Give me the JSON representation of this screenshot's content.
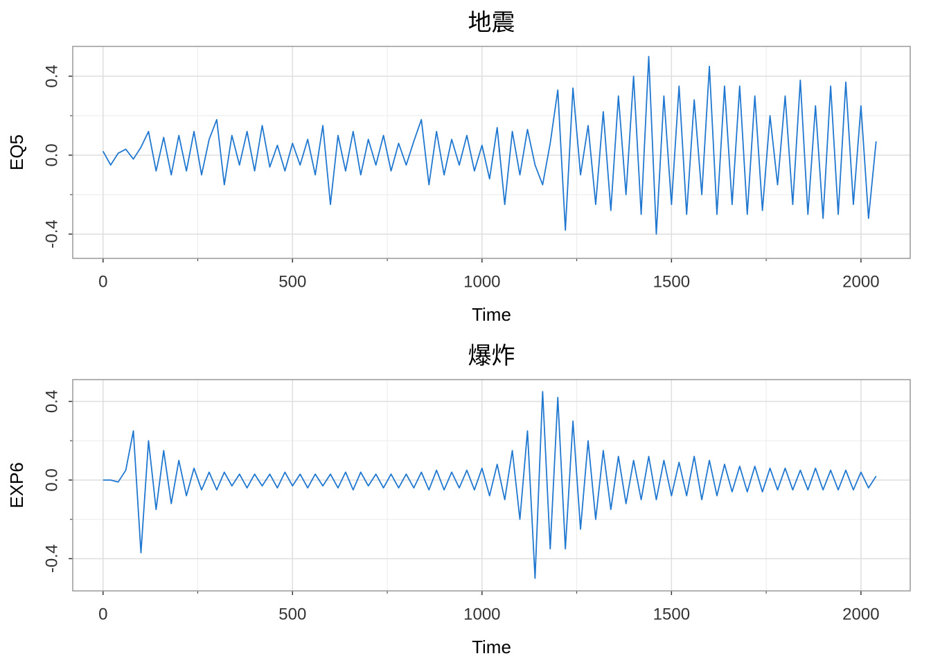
{
  "chart_data": [
    {
      "type": "line",
      "title": "地震",
      "xlabel": "Time",
      "ylabel": "EQ5",
      "x": [
        0,
        20,
        40,
        60,
        80,
        100,
        120,
        140,
        160,
        180,
        200,
        220,
        240,
        260,
        280,
        300,
        320,
        340,
        360,
        380,
        400,
        420,
        440,
        460,
        480,
        500,
        520,
        540,
        560,
        580,
        600,
        620,
        640,
        660,
        680,
        700,
        720,
        740,
        760,
        780,
        800,
        820,
        840,
        860,
        880,
        900,
        920,
        940,
        960,
        980,
        1000,
        1020,
        1040,
        1060,
        1080,
        1100,
        1120,
        1140,
        1160,
        1180,
        1200,
        1220,
        1240,
        1260,
        1280,
        1300,
        1320,
        1340,
        1360,
        1380,
        1400,
        1420,
        1440,
        1460,
        1480,
        1500,
        1520,
        1540,
        1560,
        1580,
        1600,
        1620,
        1640,
        1660,
        1680,
        1700,
        1720,
        1740,
        1760,
        1780,
        1800,
        1820,
        1840,
        1860,
        1880,
        1900,
        1920,
        1940,
        1960,
        1980,
        2000,
        2020,
        2040
      ],
      "series": [
        {
          "name": "EQ5",
          "color": "#1f77d0",
          "values": [
            0.02,
            -0.05,
            0.01,
            0.03,
            -0.02,
            0.04,
            0.12,
            -0.08,
            0.09,
            -0.1,
            0.1,
            -0.08,
            0.12,
            -0.1,
            0.08,
            0.18,
            -0.15,
            0.1,
            -0.05,
            0.12,
            -0.08,
            0.15,
            -0.06,
            0.05,
            -0.08,
            0.06,
            -0.05,
            0.08,
            -0.1,
            0.15,
            -0.25,
            0.1,
            -0.08,
            0.12,
            -0.1,
            0.08,
            -0.05,
            0.1,
            -0.08,
            0.06,
            -0.05,
            0.07,
            0.18,
            -0.15,
            0.12,
            -0.1,
            0.08,
            -0.05,
            0.1,
            -0.08,
            0.05,
            -0.12,
            0.14,
            -0.25,
            0.12,
            -0.1,
            0.13,
            -0.05,
            -0.15,
            0.06,
            0.33,
            -0.38,
            0.34,
            -0.1,
            0.15,
            -0.25,
            0.22,
            -0.28,
            0.3,
            -0.2,
            0.4,
            -0.3,
            0.5,
            -0.4,
            0.3,
            -0.25,
            0.35,
            -0.3,
            0.28,
            -0.2,
            0.45,
            -0.3,
            0.35,
            -0.25,
            0.35,
            -0.3,
            0.3,
            -0.28,
            0.2,
            -0.15,
            0.3,
            -0.25,
            0.38,
            -0.3,
            0.25,
            -0.32,
            0.35,
            -0.3,
            0.37,
            -0.25,
            0.25,
            -0.32,
            0.07
          ]
        }
      ],
      "xlim": [
        -80,
        2130
      ],
      "xticks": [
        0,
        500,
        1000,
        1500,
        2000
      ],
      "xminor": [
        250,
        750,
        1250,
        1750
      ],
      "ylim": [
        -0.523,
        0.551
      ],
      "yticks": [
        -0.4,
        {
          "value": 0,
          "label": "0.0"
        },
        0.4
      ],
      "yminor": [
        -0.2,
        0.2
      ],
      "grid": true
    },
    {
      "type": "line",
      "title": "爆炸",
      "xlabel": "Time",
      "ylabel": "EXP6",
      "x": [
        0,
        20,
        40,
        60,
        80,
        100,
        120,
        140,
        160,
        180,
        200,
        220,
        240,
        260,
        280,
        300,
        320,
        340,
        360,
        380,
        400,
        420,
        440,
        460,
        480,
        500,
        520,
        540,
        560,
        580,
        600,
        620,
        640,
        660,
        680,
        700,
        720,
        740,
        760,
        780,
        800,
        820,
        840,
        860,
        880,
        900,
        920,
        940,
        960,
        980,
        1000,
        1020,
        1040,
        1060,
        1080,
        1100,
        1120,
        1140,
        1160,
        1180,
        1200,
        1220,
        1240,
        1260,
        1280,
        1300,
        1320,
        1340,
        1360,
        1380,
        1400,
        1420,
        1440,
        1460,
        1480,
        1500,
        1520,
        1540,
        1560,
        1580,
        1600,
        1620,
        1640,
        1660,
        1680,
        1700,
        1720,
        1740,
        1760,
        1780,
        1800,
        1820,
        1840,
        1860,
        1880,
        1900,
        1920,
        1940,
        1960,
        1980,
        2000,
        2020,
        2040
      ],
      "series": [
        {
          "name": "EXP6",
          "color": "#1f77d0",
          "values": [
            0,
            0,
            -0.01,
            0.05,
            0.25,
            -0.37,
            0.2,
            -0.15,
            0.15,
            -0.12,
            0.1,
            -0.08,
            0.06,
            -0.05,
            0.04,
            -0.05,
            0.04,
            -0.03,
            0.03,
            -0.04,
            0.03,
            -0.03,
            0.03,
            -0.04,
            0.04,
            -0.03,
            0.03,
            -0.04,
            0.03,
            -0.03,
            0.03,
            -0.04,
            0.04,
            -0.05,
            0.04,
            -0.03,
            0.03,
            -0.04,
            0.03,
            -0.04,
            0.03,
            -0.04,
            0.04,
            -0.05,
            0.05,
            -0.05,
            0.04,
            -0.04,
            0.05,
            -0.05,
            0.06,
            -0.08,
            0.08,
            -0.1,
            0.15,
            -0.2,
            0.25,
            -0.5,
            0.45,
            -0.35,
            0.42,
            -0.35,
            0.3,
            -0.25,
            0.2,
            -0.2,
            0.15,
            -0.15,
            0.12,
            -0.12,
            0.1,
            -0.1,
            0.12,
            -0.1,
            0.1,
            -0.08,
            0.09,
            -0.08,
            0.12,
            -0.1,
            0.1,
            -0.08,
            0.08,
            -0.06,
            0.07,
            -0.06,
            0.07,
            -0.06,
            0.06,
            -0.05,
            0.06,
            -0.05,
            0.05,
            -0.05,
            0.06,
            -0.05,
            0.05,
            -0.05,
            0.05,
            -0.05,
            0.04,
            -0.04,
            0.02
          ]
        }
      ],
      "xlim": [
        -80,
        2130
      ],
      "xticks": [
        0,
        500,
        1000,
        1500,
        2000
      ],
      "xminor": [
        250,
        750,
        1250,
        1750
      ],
      "ylim": [
        -0.564,
        0.511
      ],
      "yticks": [
        -0.4,
        {
          "value": 0,
          "label": "0.0"
        },
        0.4
      ],
      "yminor": [
        -0.2,
        0.2
      ],
      "grid": true
    }
  ]
}
